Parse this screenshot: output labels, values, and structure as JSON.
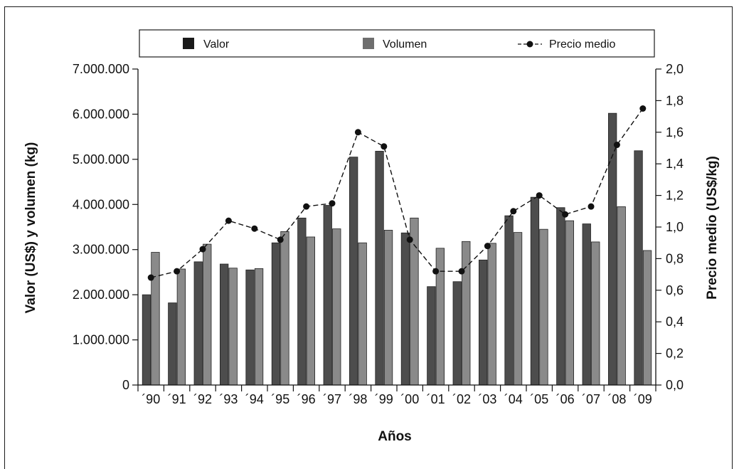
{
  "chart_data": {
    "type": "bar",
    "xlabel": "Años",
    "ylabel_left": "Valor (US$) y volumen (kg)",
    "ylabel_right": "Precio medio (US$/kg)",
    "categories": [
      "´90",
      "´91",
      "´92",
      "´93",
      "´94",
      "´95",
      "´96",
      "´97",
      "´98",
      "´99",
      "´00",
      "´01",
      "´02",
      "´03",
      "´04",
      "´05",
      "´06",
      "´07",
      "´08",
      "´09"
    ],
    "ylim_left": [
      0,
      7000000
    ],
    "ylim_right": [
      0,
      2.0
    ],
    "yticks_left": [
      "0",
      "1.000.000",
      "2.000.000",
      "3.000.000",
      "4.000.000",
      "5.000.000",
      "6.000.000",
      "7.000.000"
    ],
    "yticks_right": [
      "0,0",
      "0,2",
      "0,4",
      "0,6",
      "0,8",
      "1,0",
      "1,2",
      "1,4",
      "1,6",
      "1,8",
      "2,0"
    ],
    "legend_position": "top",
    "series": [
      {
        "name": "Valor",
        "kind": "bar",
        "color": "#4d4d4d",
        "values": [
          2000000,
          1820000,
          2730000,
          2680000,
          2550000,
          3150000,
          3700000,
          3980000,
          5050000,
          5180000,
          3370000,
          2180000,
          2290000,
          2770000,
          3750000,
          4160000,
          3930000,
          3570000,
          6020000,
          5190000
        ]
      },
      {
        "name": "Volumen",
        "kind": "bar",
        "color": "#8a8a8a",
        "values": [
          2940000,
          2570000,
          3120000,
          2590000,
          2580000,
          3400000,
          3280000,
          3460000,
          3150000,
          3430000,
          3700000,
          3030000,
          3180000,
          3140000,
          3380000,
          3450000,
          3640000,
          3170000,
          3950000,
          2980000
        ]
      },
      {
        "name": "Precio medio",
        "kind": "line",
        "color": "#111111",
        "axis": "right",
        "values": [
          0.68,
          0.72,
          0.86,
          1.04,
          0.99,
          0.92,
          1.13,
          1.15,
          1.6,
          1.51,
          0.92,
          0.72,
          0.72,
          0.88,
          1.1,
          1.2,
          1.08,
          1.13,
          1.52,
          1.75
        ]
      }
    ]
  }
}
